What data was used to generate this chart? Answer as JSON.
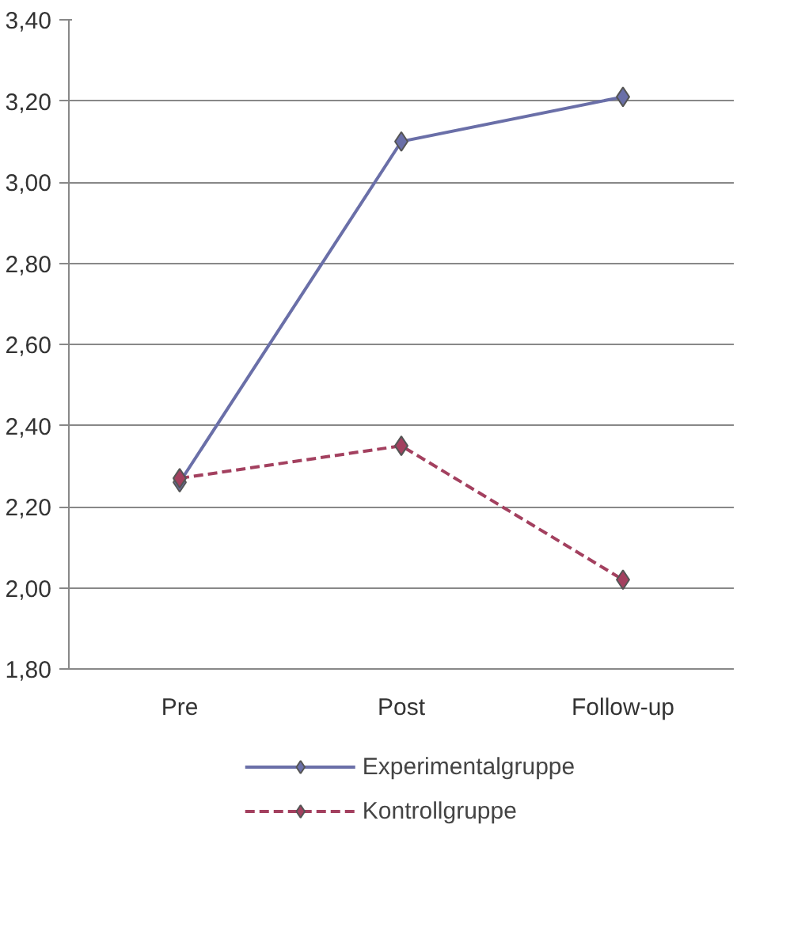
{
  "chart_data": {
    "type": "line",
    "categories": [
      "Pre",
      "Post",
      "Follow-up"
    ],
    "series": [
      {
        "name": "Experimentalgruppe",
        "color": "#6a6fa8",
        "values": [
          2.26,
          3.1,
          3.21
        ],
        "line_style": "solid"
      },
      {
        "name": "Kontrollgruppe",
        "color": "#a3405f",
        "values": [
          2.27,
          2.35,
          2.02
        ],
        "line_style": "dashed"
      }
    ],
    "ylim": [
      1.8,
      3.4
    ],
    "yticks": [
      {
        "value": 1.8,
        "label": "1,80"
      },
      {
        "value": 2.0,
        "label": "2,00"
      },
      {
        "value": 2.2,
        "label": "2,20"
      },
      {
        "value": 2.4,
        "label": "2,40"
      },
      {
        "value": 2.6,
        "label": "2,60"
      },
      {
        "value": 2.8,
        "label": "2,80"
      },
      {
        "value": 3.0,
        "label": "3,00"
      },
      {
        "value": 3.2,
        "label": "3,20"
      },
      {
        "value": 3.4,
        "label": "3,40"
      }
    ],
    "grid": "y",
    "legend": "bottom",
    "marker": "diamond"
  }
}
